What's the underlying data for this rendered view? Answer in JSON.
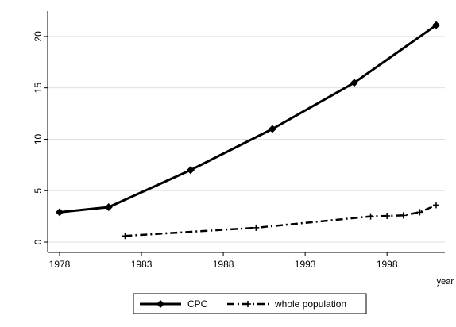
{
  "chart_data": {
    "type": "line",
    "title": "",
    "xlabel": "year",
    "ylabel": "",
    "xlim": [
      1978,
      2001
    ],
    "ylim": [
      0,
      22
    ],
    "x_ticks": [
      1978,
      1983,
      1988,
      1993,
      1998
    ],
    "y_ticks": [
      0,
      5,
      10,
      15,
      20
    ],
    "grid": "horizontal",
    "legend_position": "bottom",
    "series": [
      {
        "name": "CPC",
        "style": "solid",
        "marker": "diamond",
        "color": "#000000",
        "x": [
          1978,
          1981,
          1986,
          1991,
          1996,
          2001
        ],
        "y": [
          2.9,
          3.4,
          7.0,
          11.0,
          15.5,
          21.1
        ]
      },
      {
        "name": "whole population",
        "style": "dash-dot",
        "marker": "plus",
        "color": "#000000",
        "x": [
          1982,
          1990,
          1997,
          1998,
          1999,
          2000,
          2001
        ],
        "y": [
          0.6,
          1.4,
          2.5,
          2.55,
          2.6,
          2.9,
          3.6
        ]
      }
    ]
  }
}
